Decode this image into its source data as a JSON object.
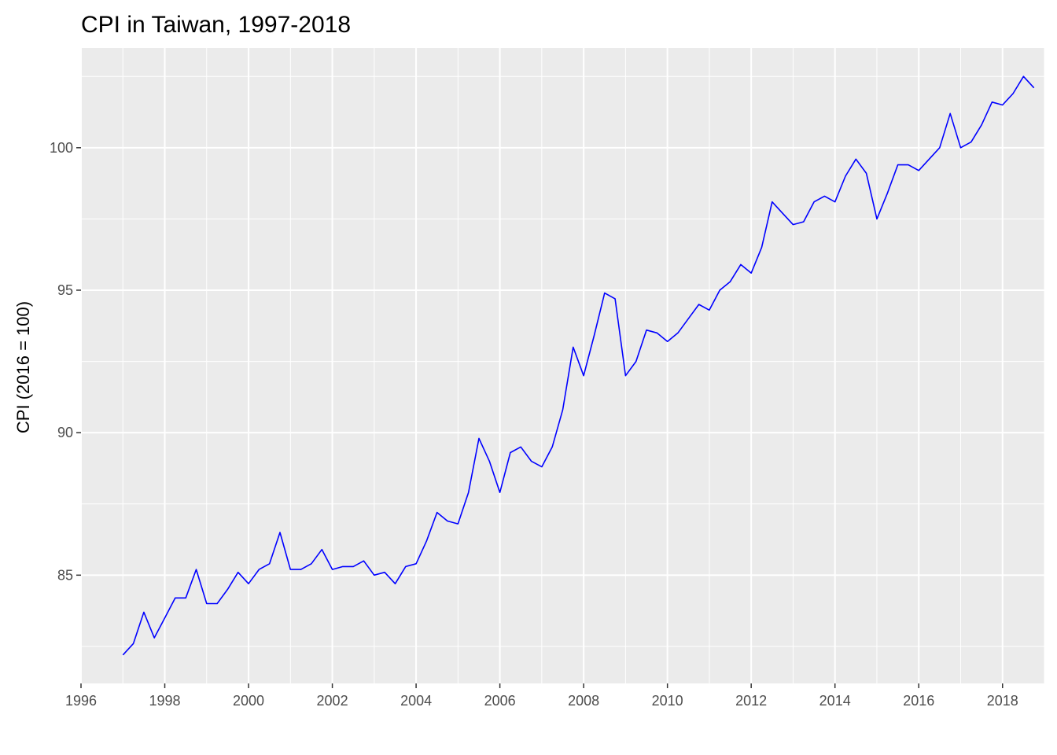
{
  "chart_data": {
    "type": "line",
    "title": "CPI in Taiwan, 1997-2018",
    "xlabel": "",
    "ylabel": "CPI (2016 = 100)",
    "xlim": [
      1996,
      2019
    ],
    "ylim": [
      81.2,
      103.5
    ],
    "x_ticks": [
      1996,
      1998,
      2000,
      2002,
      2004,
      2006,
      2008,
      2010,
      2012,
      2014,
      2016,
      2018
    ],
    "x_tick_labels": [
      "1996",
      "1998",
      "2000",
      "2002",
      "2004",
      "2006",
      "2008",
      "2010",
      "2012",
      "2014",
      "2016",
      "2018"
    ],
    "y_ticks": [
      85,
      90,
      95,
      100
    ],
    "y_tick_labels": [
      "85",
      "90",
      "95",
      "100"
    ],
    "grid": true,
    "series": [
      {
        "color": "#0000ff",
        "x": [
          1997.0,
          1997.25,
          1997.5,
          1997.75,
          1998.0,
          1998.25,
          1998.5,
          1998.75,
          1999.0,
          1999.25,
          1999.5,
          1999.75,
          2000.0,
          2000.25,
          2000.5,
          2000.75,
          2001.0,
          2001.25,
          2001.5,
          2001.75,
          2002.0,
          2002.25,
          2002.5,
          2002.75,
          2003.0,
          2003.25,
          2003.5,
          2003.75,
          2004.0,
          2004.25,
          2004.5,
          2004.75,
          2005.0,
          2005.25,
          2005.5,
          2005.75,
          2006.0,
          2006.25,
          2006.5,
          2006.75,
          2007.0,
          2007.25,
          2007.5,
          2007.75,
          2008.0,
          2008.25,
          2008.5,
          2008.75,
          2009.0,
          2009.25,
          2009.5,
          2009.75,
          2010.0,
          2010.25,
          2010.5,
          2010.75,
          2011.0,
          2011.25,
          2011.5,
          2011.75,
          2012.0,
          2012.25,
          2012.5,
          2012.75,
          2013.0,
          2013.25,
          2013.5,
          2013.75,
          2014.0,
          2014.25,
          2014.5,
          2014.75,
          2015.0,
          2015.25,
          2015.5,
          2015.75,
          2016.0,
          2016.25,
          2016.5,
          2016.75,
          2017.0,
          2017.25,
          2017.5,
          2017.75,
          2018.0,
          2018.25,
          2018.5,
          2018.75
        ],
        "values": [
          82.2,
          82.6,
          83.7,
          82.8,
          83.5,
          84.2,
          84.2,
          85.2,
          84.0,
          84.0,
          84.5,
          85.1,
          84.7,
          85.2,
          85.4,
          86.5,
          85.2,
          85.2,
          85.4,
          85.9,
          85.2,
          85.3,
          85.3,
          85.5,
          85.0,
          85.1,
          84.7,
          85.3,
          85.4,
          86.2,
          87.2,
          86.9,
          86.8,
          87.9,
          89.8,
          89.0,
          87.9,
          89.3,
          89.5,
          89.0,
          88.8,
          89.5,
          90.8,
          93.0,
          92.0,
          93.4,
          94.9,
          94.7,
          92.0,
          92.5,
          93.6,
          93.5,
          93.2,
          93.5,
          94.0,
          94.5,
          94.3,
          95.0,
          95.3,
          95.9,
          95.6,
          96.5,
          98.1,
          97.7,
          97.3,
          97.4,
          98.1,
          98.3,
          98.1,
          99.0,
          99.6,
          99.1,
          97.5,
          98.4,
          99.4,
          99.4,
          99.2,
          99.6,
          100.0,
          101.2,
          100.0,
          100.2,
          100.8,
          101.6,
          101.5,
          101.9,
          102.5,
          102.1
        ]
      }
    ]
  }
}
